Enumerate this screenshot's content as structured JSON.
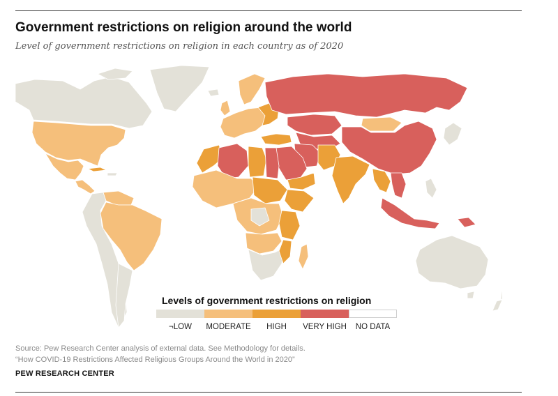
{
  "header": {
    "title": "Government restrictions on religion around the world",
    "subtitle": "Level of government restrictions on religion in each country as of 2020"
  },
  "legend": {
    "title": "Levels of government restrictions on religion",
    "items": [
      {
        "label": "¬LOW",
        "color": "#e3e1d8"
      },
      {
        "label": "MODERATE",
        "color": "#f5bf7b"
      },
      {
        "label": "HIGH",
        "color": "#eba038"
      },
      {
        "label": "VERY HIGH",
        "color": "#d8605c"
      },
      {
        "label": "NO DATA",
        "color": "#ffffff"
      }
    ]
  },
  "map_regions": [
    {
      "region": "Canada",
      "level": "LOW"
    },
    {
      "region": "Greenland",
      "level": "LOW"
    },
    {
      "region": "United States",
      "level": "MODERATE"
    },
    {
      "region": "Mexico",
      "level": "MODERATE"
    },
    {
      "region": "Central America",
      "level": "MODERATE"
    },
    {
      "region": "Cuba",
      "level": "HIGH"
    },
    {
      "region": "Brazil",
      "level": "MODERATE"
    },
    {
      "region": "Andean countries",
      "level": "LOW"
    },
    {
      "region": "Argentina",
      "level": "LOW"
    },
    {
      "region": "Chile",
      "level": "LOW"
    },
    {
      "region": "Western Europe",
      "level": "MODERATE"
    },
    {
      "region": "Scandinavia",
      "level": "MODERATE"
    },
    {
      "region": "Russia",
      "level": "VERY HIGH"
    },
    {
      "region": "China",
      "level": "VERY HIGH"
    },
    {
      "region": "Mongolia",
      "level": "MODERATE"
    },
    {
      "region": "Central Asia",
      "level": "VERY HIGH"
    },
    {
      "region": "Kazakhstan",
      "level": "VERY HIGH"
    },
    {
      "region": "Iran",
      "level": "VERY HIGH"
    },
    {
      "region": "Saudi Arabia",
      "level": "VERY HIGH"
    },
    {
      "region": "Egypt",
      "level": "VERY HIGH"
    },
    {
      "region": "Algeria",
      "level": "VERY HIGH"
    },
    {
      "region": "Libya",
      "level": "HIGH"
    },
    {
      "region": "Morocco",
      "level": "HIGH"
    },
    {
      "region": "Turkey",
      "level": "HIGH"
    },
    {
      "region": "Pakistan",
      "level": "HIGH"
    },
    {
      "region": "India",
      "level": "HIGH"
    },
    {
      "region": "Myanmar",
      "level": "HIGH"
    },
    {
      "region": "Vietnam",
      "level": "VERY HIGH"
    },
    {
      "region": "Malaysia",
      "level": "VERY HIGH"
    },
    {
      "region": "Indonesia",
      "level": "VERY HIGH"
    },
    {
      "region": "Sudan",
      "level": "HIGH"
    },
    {
      "region": "Ethiopia",
      "level": "HIGH"
    },
    {
      "region": "West Africa",
      "level": "MODERATE"
    },
    {
      "region": "Central Africa",
      "level": "MODERATE"
    },
    {
      "region": "Tanzania",
      "level": "HIGH"
    },
    {
      "region": "Southern Africa",
      "level": "LOW"
    },
    {
      "region": "Madagascar",
      "level": "MODERATE"
    },
    {
      "region": "Japan",
      "level": "LOW"
    },
    {
      "region": "Philippines",
      "level": "LOW"
    },
    {
      "region": "Australia",
      "level": "LOW"
    },
    {
      "region": "New Zealand",
      "level": "LOW"
    }
  ],
  "source": {
    "line1": "Source: Pew Research Center analysis of external data. See Methodology for details.",
    "line2": "“How COVID-19 Restrictions Affected Religious Groups Around the World in 2020”"
  },
  "footer": "PEW RESEARCH CENTER"
}
